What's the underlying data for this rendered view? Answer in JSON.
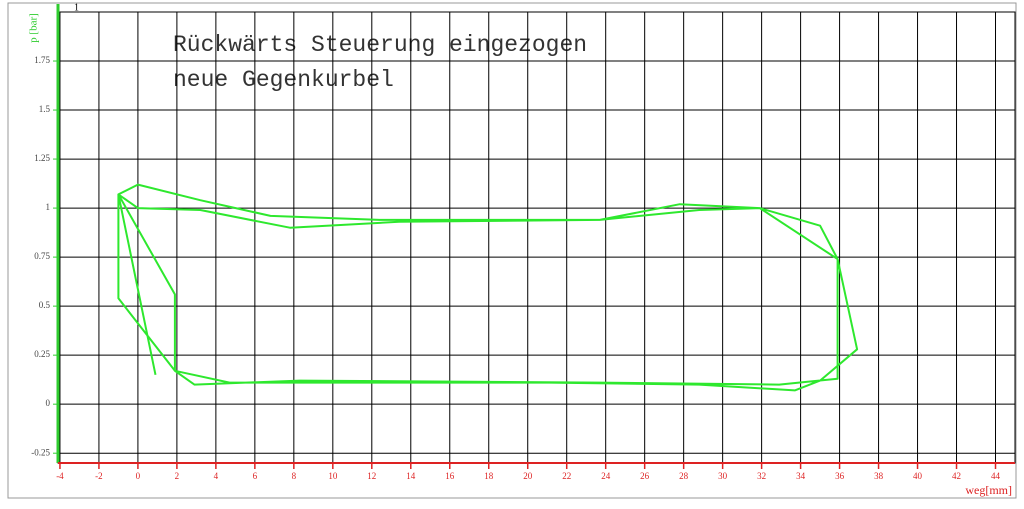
{
  "chart_data": {
    "type": "line",
    "annotations": [
      "Rückwärts Steuerung eingezogen",
      "neue Gegenkurbel"
    ],
    "corner_label": "1",
    "x_label": "weg[mm]",
    "y_label": "p [bar]",
    "series": [
      {
        "color": "#2ee82e",
        "x": [
          0.9,
          -1.0,
          0,
          3.2,
          6.8,
          12.4,
          23.7,
          27.8,
          31.9,
          35,
          35.9,
          36.9,
          35,
          33.7,
          28.8,
          21.1,
          12.4,
          4.7,
          1.9,
          1.9,
          -1.0,
          0,
          3.2,
          7.8,
          13.4,
          23.7,
          28.8,
          31.9,
          35.9,
          35.9,
          32.9,
          23.7,
          8.3,
          2.9,
          1.9,
          -1.0,
          -1.0
        ],
        "values": [
          0.15,
          1.07,
          1.12,
          1.04,
          0.96,
          0.94,
          0.94,
          1.02,
          1.0,
          0.91,
          0.74,
          0.28,
          0.12,
          0.07,
          0.1,
          0.11,
          0.11,
          0.11,
          0.17,
          0.56,
          1.07,
          1.0,
          0.99,
          0.9,
          0.93,
          0.94,
          0.99,
          1.0,
          0.74,
          0.13,
          0.1,
          0.11,
          0.12,
          0.1,
          0.17,
          0.54,
          1.07
        ]
      }
    ],
    "xlim": [
      -4.1,
      45
    ],
    "ylim": [
      -0.3,
      2
    ],
    "xticks": [
      -4,
      -2,
      0,
      2,
      4,
      6,
      8,
      10,
      12,
      14,
      16,
      18,
      20,
      22,
      24,
      26,
      28,
      30,
      32,
      34,
      36,
      38,
      40,
      42,
      44
    ],
    "yticks": [
      -0.25,
      0,
      0.25,
      0.5,
      0.75,
      1,
      1.25,
      1.5,
      1.75
    ],
    "grid": true
  }
}
